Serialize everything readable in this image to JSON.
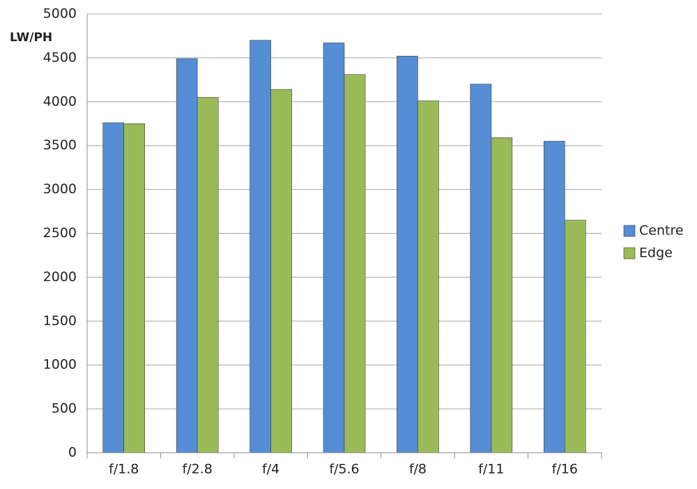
{
  "chart_data": {
    "type": "bar",
    "y_label": "LW/PH",
    "categories": [
      "f/1.8",
      "f/2.8",
      "f/4",
      "f/5.6",
      "f/8",
      "f/11",
      "f/16"
    ],
    "series": [
      {
        "name": "Centre",
        "color": "#558ed5",
        "values": [
          3760,
          4490,
          4700,
          4670,
          4520,
          4200,
          3550
        ]
      },
      {
        "name": "Edge",
        "color": "#9bbb59",
        "values": [
          3750,
          4050,
          4140,
          4310,
          4010,
          3590,
          2650
        ]
      }
    ],
    "ylim": [
      0,
      5000
    ],
    "yticks": [
      0,
      500,
      1000,
      1500,
      2000,
      2500,
      3000,
      3500,
      4000,
      4500,
      5000
    ],
    "grid": true,
    "legend": "right"
  }
}
